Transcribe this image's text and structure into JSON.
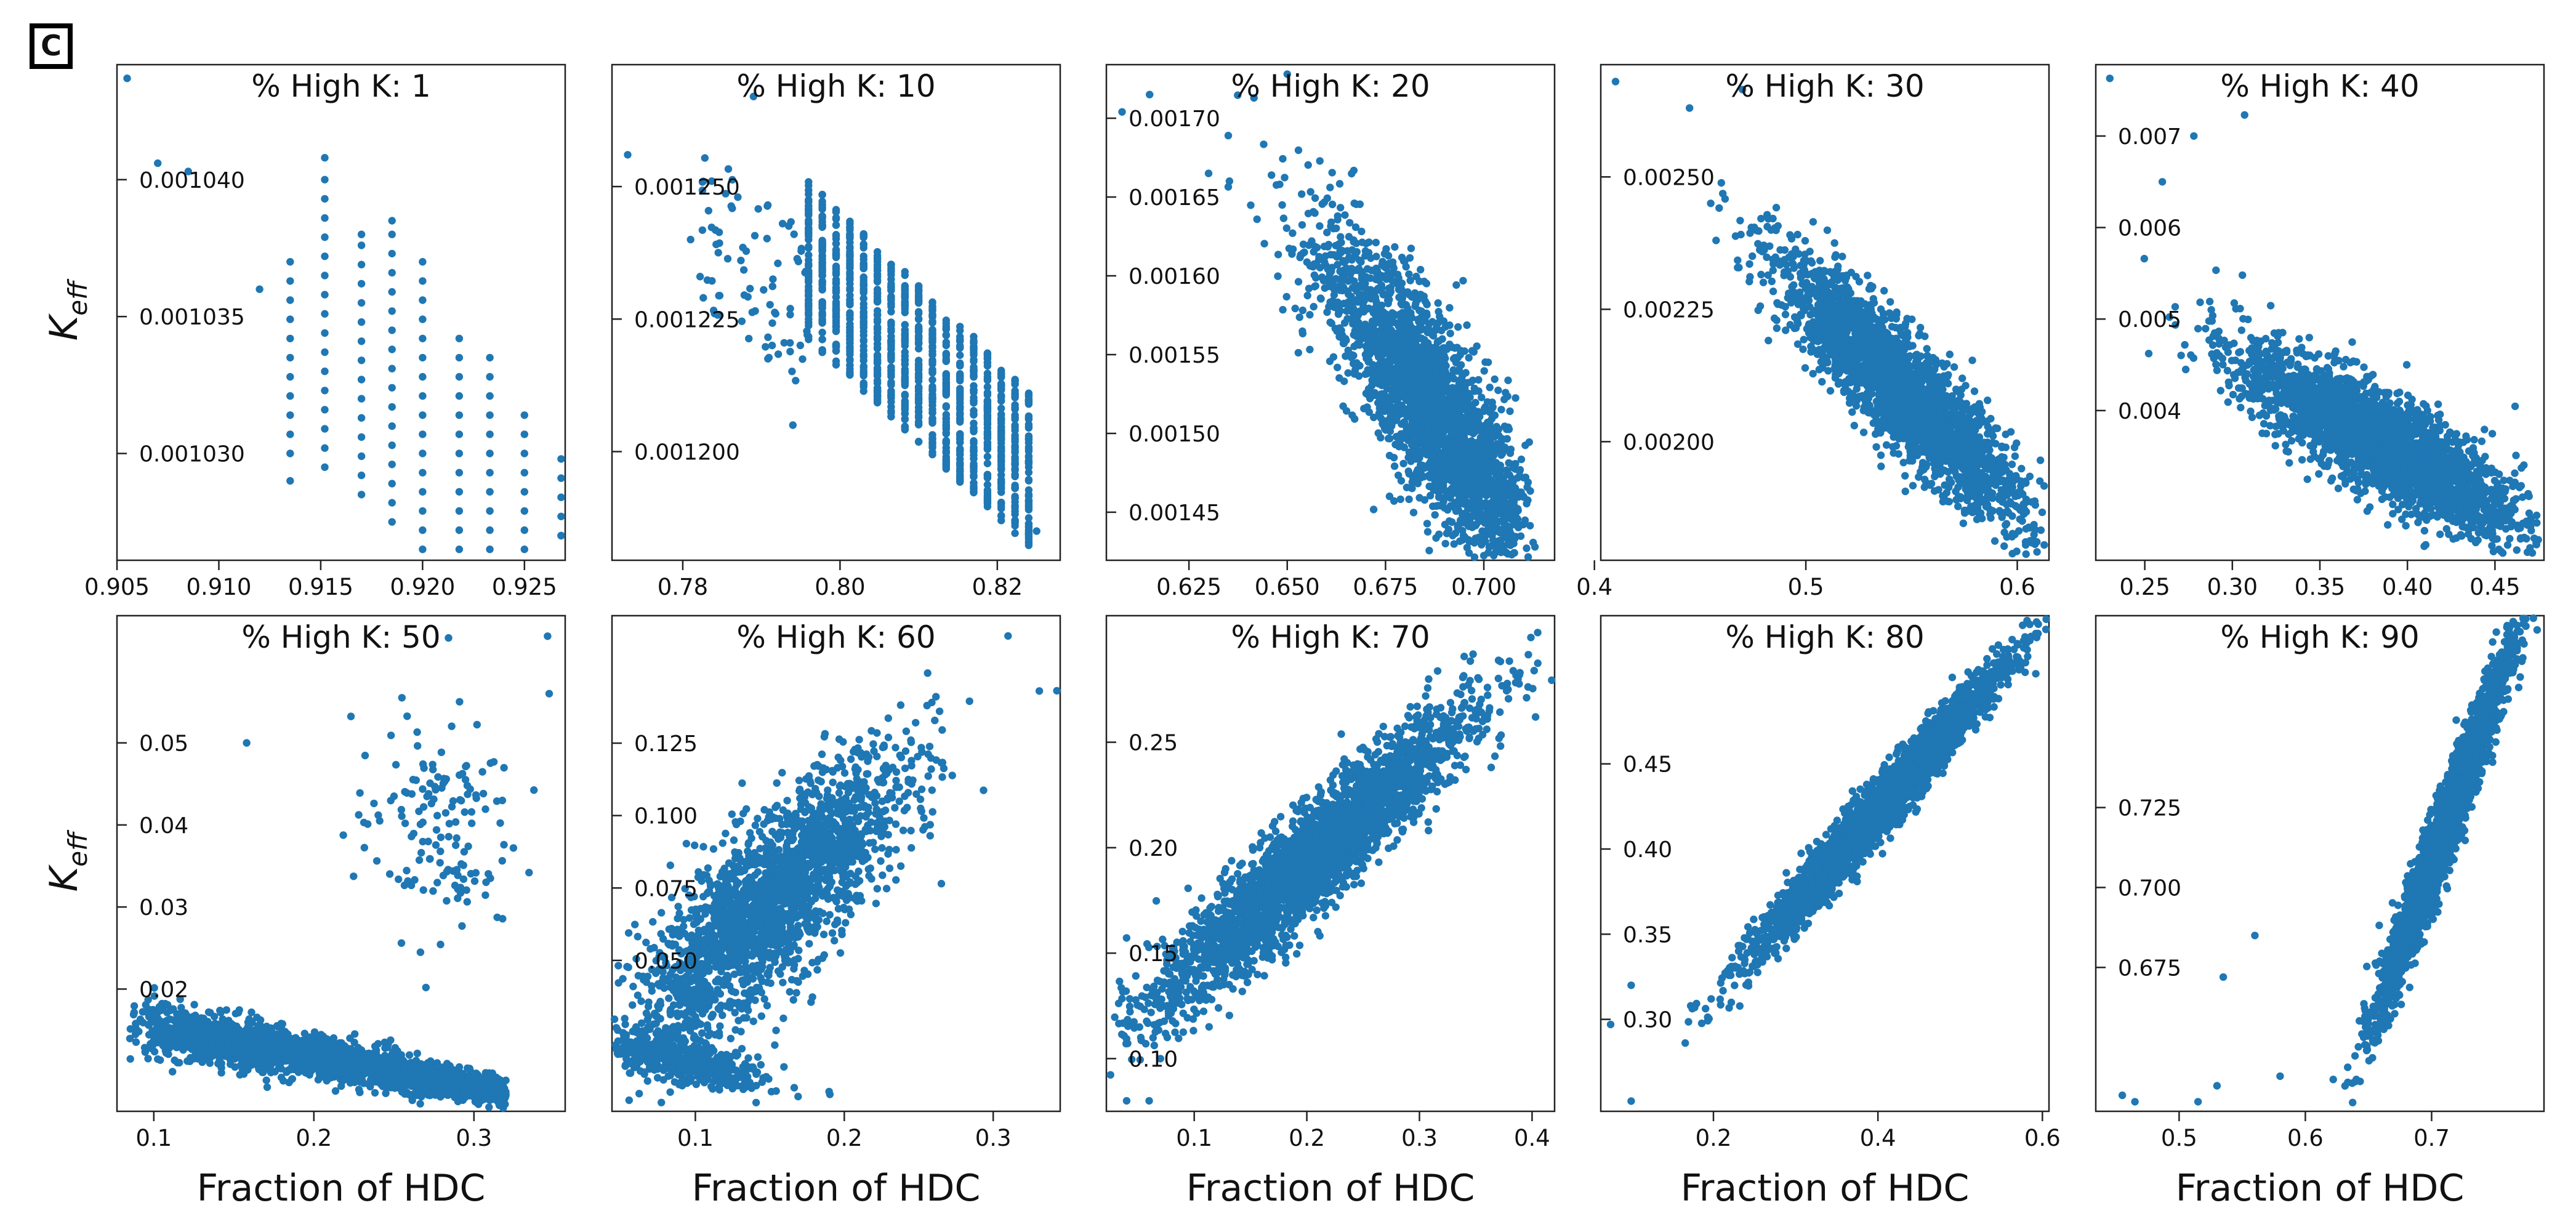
{
  "panel_label": "C",
  "figure_title": "",
  "xlabel": "Fraction of HDC",
  "ylabel_base": "K",
  "ylabel_sub": "eff",
  "colors": {
    "points": "#1f77b4",
    "axis": "#222222",
    "label_box": "#000000",
    "background": "#ffffff"
  },
  "chart_data": [
    {
      "type": "scatter",
      "title": "% High  K: 1",
      "xlim": [
        0.905,
        0.927
      ],
      "ylim": [
        1.0261,
        1.0442
      ],
      "xticks": [
        0.905,
        0.91,
        0.915,
        0.92,
        0.925
      ],
      "xticklabels": [
        "0.905",
        "0.910",
        "0.915",
        "0.920",
        "0.925"
      ],
      "yticks": [
        1.03,
        1.035,
        1.04
      ],
      "yticklabels": [
        "0.001030",
        "0.001035",
        "0.001040"
      ],
      "yscale_factor": 0.001,
      "trend": "negative",
      "discrete_x": true,
      "count": 220,
      "anchors": [
        {
          "x": 0.9055,
          "y": 1.0437
        },
        {
          "x": 0.907,
          "y": 1.0406
        },
        {
          "x": 0.9085,
          "y": 1.0403
        },
        {
          "x": 0.912,
          "y": 1.036
        },
        {
          "x": 0.9135,
          "y": 1.029
        },
        {
          "x": 0.9152,
          "y": 1.0408
        },
        {
          "x": 0.917,
          "y": 1.038
        },
        {
          "x": 0.9185,
          "y": 1.0385
        },
        {
          "x": 0.9268,
          "y": 1.027
        }
      ]
    },
    {
      "type": "scatter",
      "title": "% High  K: 10",
      "xlim": [
        0.771,
        0.828
      ],
      "ylim": [
        1.1795,
        1.273
      ],
      "xticks": [
        0.78,
        0.8,
        0.82
      ],
      "xticklabels": [
        "0.78",
        "0.80",
        "0.82"
      ],
      "yticks": [
        1.2,
        1.225,
        1.25
      ],
      "yticklabels": [
        "0.001200",
        "0.001225",
        "0.001250"
      ],
      "yscale_factor": 0.001,
      "trend": "negative",
      "discrete_x": true,
      "count": 1600,
      "anchors": [
        {
          "x": 0.773,
          "y": 1.256
        },
        {
          "x": 0.789,
          "y": 1.267
        },
        {
          "x": 0.781,
          "y": 1.24
        },
        {
          "x": 0.787,
          "y": 1.248
        },
        {
          "x": 0.794,
          "y": 1.205
        },
        {
          "x": 0.825,
          "y": 1.185
        }
      ]
    },
    {
      "type": "scatter",
      "title": "% High  K: 20",
      "xlim": [
        0.604,
        0.718
      ],
      "ylim": [
        1.4195,
        1.734
      ],
      "xticks": [
        0.625,
        0.65,
        0.675,
        0.7
      ],
      "xticklabels": [
        "0.625",
        "0.650",
        "0.675",
        "0.700"
      ],
      "yticks": [
        1.45,
        1.5,
        1.55,
        1.6,
        1.65,
        1.7
      ],
      "yticklabels": [
        "0.00145",
        "0.00150",
        "0.00155",
        "0.00160",
        "0.00165",
        "0.00170"
      ],
      "yscale_factor": 0.001,
      "trend": "negative",
      "count": 2600,
      "anchors": [
        {
          "x": 0.608,
          "y": 1.704
        },
        {
          "x": 0.615,
          "y": 1.715
        },
        {
          "x": 0.65,
          "y": 1.728
        },
        {
          "x": 0.63,
          "y": 1.665
        },
        {
          "x": 0.713,
          "y": 1.428
        }
      ]
    },
    {
      "type": "scatter",
      "title": "% High  K: 30",
      "xlim": [
        0.403,
        0.615
      ],
      "ylim": [
        1.776,
        2.712
      ],
      "xticks": [
        0.4,
        0.5,
        0.6
      ],
      "xticklabels": [
        "0.4",
        "0.5",
        "0.6"
      ],
      "yticks": [
        2.0,
        2.25,
        2.5
      ],
      "yticklabels": [
        "0.00200",
        "0.00225",
        "0.00250"
      ],
      "yscale_factor": 0.001,
      "trend": "negative",
      "count": 2600,
      "anchors": [
        {
          "x": 0.41,
          "y": 2.68
        },
        {
          "x": 0.445,
          "y": 2.63
        },
        {
          "x": 0.47,
          "y": 2.665
        },
        {
          "x": 0.455,
          "y": 2.45
        },
        {
          "x": 0.604,
          "y": 1.805
        }
      ]
    },
    {
      "type": "scatter",
      "title": "% High  K: 40",
      "xlim": [
        0.222,
        0.478
      ],
      "ylim": [
        2.364,
        7.78
      ],
      "xticks": [
        0.25,
        0.3,
        0.35,
        0.4,
        0.45
      ],
      "xticklabels": [
        "0.25",
        "0.30",
        "0.35",
        "0.40",
        "0.45"
      ],
      "yticks": [
        4.0,
        5.0,
        6.0,
        7.0
      ],
      "yticklabels": [
        "0.004",
        "0.005",
        "0.006",
        "0.007"
      ],
      "yscale_factor": 0.001,
      "trend": "negative",
      "count": 2600,
      "anchors": [
        {
          "x": 0.23,
          "y": 7.63
        },
        {
          "x": 0.307,
          "y": 7.23
        },
        {
          "x": 0.278,
          "y": 7.0
        },
        {
          "x": 0.26,
          "y": 6.5
        },
        {
          "x": 0.47,
          "y": 2.5
        }
      ]
    },
    {
      "type": "scatter",
      "title": "% High  K: 50",
      "xlim": [
        0.077,
        0.357
      ],
      "ylim": [
        0.0051,
        0.0655
      ],
      "xticks": [
        0.1,
        0.2,
        0.3
      ],
      "xticklabels": [
        "0.1",
        "0.2",
        "0.3"
      ],
      "yticks": [
        0.02,
        0.03,
        0.04,
        0.05
      ],
      "yticklabels": [
        "0.02",
        "0.03",
        "0.04",
        "0.05"
      ],
      "yscale_factor": 1,
      "trend": "two-clusters",
      "count": 2700,
      "anchors": [
        {
          "x": 0.346,
          "y": 0.063
        },
        {
          "x": 0.347,
          "y": 0.056
        },
        {
          "x": 0.255,
          "y": 0.0555
        },
        {
          "x": 0.158,
          "y": 0.05
        },
        {
          "x": 0.319,
          "y": 0.007
        }
      ]
    },
    {
      "type": "scatter",
      "title": "% High  K: 60",
      "xlim": [
        0.044,
        0.345
      ],
      "ylim": [
        -0.0021,
        0.169
      ],
      "xticks": [
        0.1,
        0.2,
        0.3
      ],
      "xticklabels": [
        "0.1",
        "0.2",
        "0.3"
      ],
      "yticks": [
        0.05,
        0.075,
        0.1,
        0.125
      ],
      "yticklabels": [
        "0.050",
        "0.075",
        "0.100",
        "0.125"
      ],
      "yscale_factor": 1,
      "trend": "two-clusters",
      "count": 2600,
      "anchors": [
        {
          "x": 0.31,
          "y": 0.162
        },
        {
          "x": 0.331,
          "y": 0.143
        },
        {
          "x": 0.264,
          "y": 0.136
        },
        {
          "x": 0.169,
          "y": 0.003
        }
      ]
    },
    {
      "type": "scatter",
      "title": "% High  K: 70",
      "xlim": [
        0.022,
        0.42
      ],
      "ylim": [
        0.075,
        0.31
      ],
      "xticks": [
        0.1,
        0.2,
        0.3,
        0.4
      ],
      "xticklabels": [
        "0.1",
        "0.2",
        "0.3",
        "0.4"
      ],
      "yticks": [
        0.1,
        0.15,
        0.2,
        0.25
      ],
      "yticklabels": [
        "0.10",
        "0.15",
        "0.20",
        "0.25"
      ],
      "yscale_factor": 1,
      "trend": "positive",
      "count": 2800,
      "anchors": [
        {
          "x": 0.405,
          "y": 0.302
        },
        {
          "x": 0.04,
          "y": 0.08
        },
        {
          "x": 0.06,
          "y": 0.08
        },
        {
          "x": 0.07,
          "y": 0.1
        }
      ]
    },
    {
      "type": "scatter",
      "title": "% High  K: 80",
      "xlim": [
        0.063,
        0.608
      ],
      "ylim": [
        0.246,
        0.537
      ],
      "xticks": [
        0.2,
        0.4,
        0.6
      ],
      "xticklabels": [
        "0.2",
        "0.4",
        "0.6"
      ],
      "yticks": [
        0.3,
        0.35,
        0.4,
        0.45
      ],
      "yticklabels": [
        "0.30",
        "0.35",
        "0.40",
        "0.45"
      ],
      "yscale_factor": 1,
      "trend": "positive",
      "count": 2800,
      "anchors": [
        {
          "x": 0.595,
          "y": 0.532
        },
        {
          "x": 0.1,
          "y": 0.252
        },
        {
          "x": 0.075,
          "y": 0.297
        },
        {
          "x": 0.1,
          "y": 0.32
        }
      ]
    },
    {
      "type": "scatter",
      "title": "% High  K: 90",
      "xlim": [
        0.434,
        0.789
      ],
      "ylim": [
        0.63,
        0.785
      ],
      "xticks": [
        0.5,
        0.6,
        0.7
      ],
      "xticklabels": [
        "0.5",
        "0.6",
        "0.7"
      ],
      "yticks": [
        0.675,
        0.7,
        0.725
      ],
      "yticklabels": [
        "0.675",
        "0.700",
        "0.725"
      ],
      "yscale_factor": 1,
      "trend": "positive",
      "count": 2600,
      "anchors": [
        {
          "x": 0.455,
          "y": 0.635
        },
        {
          "x": 0.465,
          "y": 0.633
        },
        {
          "x": 0.515,
          "y": 0.633
        },
        {
          "x": 0.53,
          "y": 0.638
        },
        {
          "x": 0.58,
          "y": 0.641
        },
        {
          "x": 0.535,
          "y": 0.672
        },
        {
          "x": 0.56,
          "y": 0.685
        },
        {
          "x": 0.77,
          "y": 0.78
        }
      ]
    }
  ]
}
